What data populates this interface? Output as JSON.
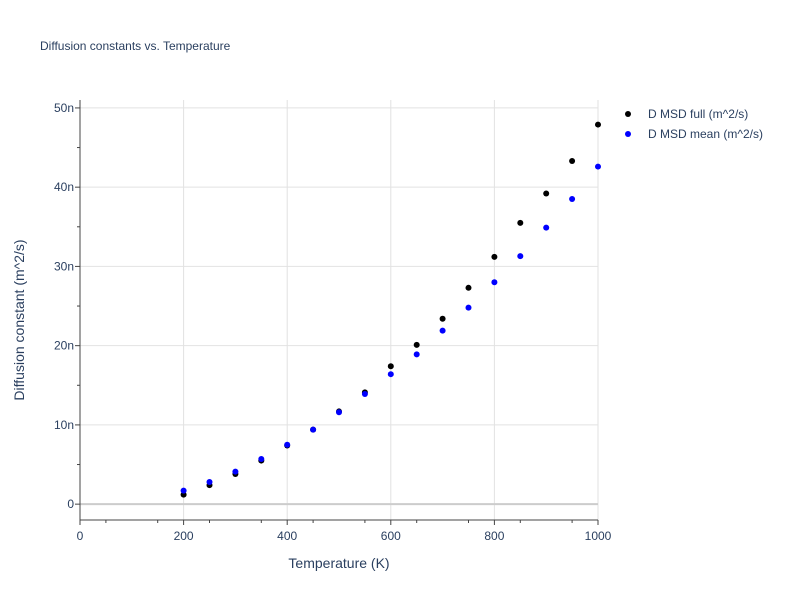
{
  "chart_data": {
    "type": "scatter",
    "title": "Diffusion constants vs. Temperature",
    "xlabel": "Temperature (K)",
    "ylabel": "Diffusion constant (m^2/s)",
    "xlim": [
      0,
      1000
    ],
    "ylim": [
      -2,
      51
    ],
    "grid": true,
    "legend_position": "top-right-outside",
    "x_ticks": [
      {
        "value": 0,
        "label": "0"
      },
      {
        "value": 200,
        "label": "200"
      },
      {
        "value": 400,
        "label": "400"
      },
      {
        "value": 600,
        "label": "600"
      },
      {
        "value": 800,
        "label": "800"
      },
      {
        "value": 1000,
        "label": "1000"
      }
    ],
    "y_ticks": [
      {
        "value": 0,
        "label": "0"
      },
      {
        "value": 10,
        "label": "10n"
      },
      {
        "value": 20,
        "label": "20n"
      },
      {
        "value": 30,
        "label": "30n"
      },
      {
        "value": 40,
        "label": "40n"
      },
      {
        "value": 50,
        "label": "50n"
      }
    ],
    "y_unit_note": "nano (1e-9)",
    "series": [
      {
        "name": "D MSD full (m^2/s)",
        "color": "#000000",
        "x": [
          200,
          250,
          300,
          350,
          400,
          450,
          500,
          550,
          600,
          650,
          700,
          750,
          800,
          850,
          900,
          950,
          1000
        ],
        "y": [
          1.2,
          2.4,
          3.8,
          5.5,
          7.4,
          9.4,
          11.7,
          14.1,
          17.4,
          20.1,
          23.4,
          27.3,
          31.2,
          35.5,
          39.2,
          43.3,
          47.9
        ]
      },
      {
        "name": "D MSD mean (m^2/s)",
        "color": "#0000ff",
        "x": [
          200,
          250,
          300,
          350,
          400,
          450,
          500,
          550,
          600,
          650,
          700,
          750,
          800,
          850,
          900,
          950,
          1000
        ],
        "y": [
          1.7,
          2.8,
          4.1,
          5.7,
          7.5,
          9.4,
          11.6,
          13.9,
          16.4,
          18.9,
          21.9,
          24.8,
          28.0,
          31.3,
          34.9,
          38.5,
          42.6
        ]
      }
    ]
  }
}
